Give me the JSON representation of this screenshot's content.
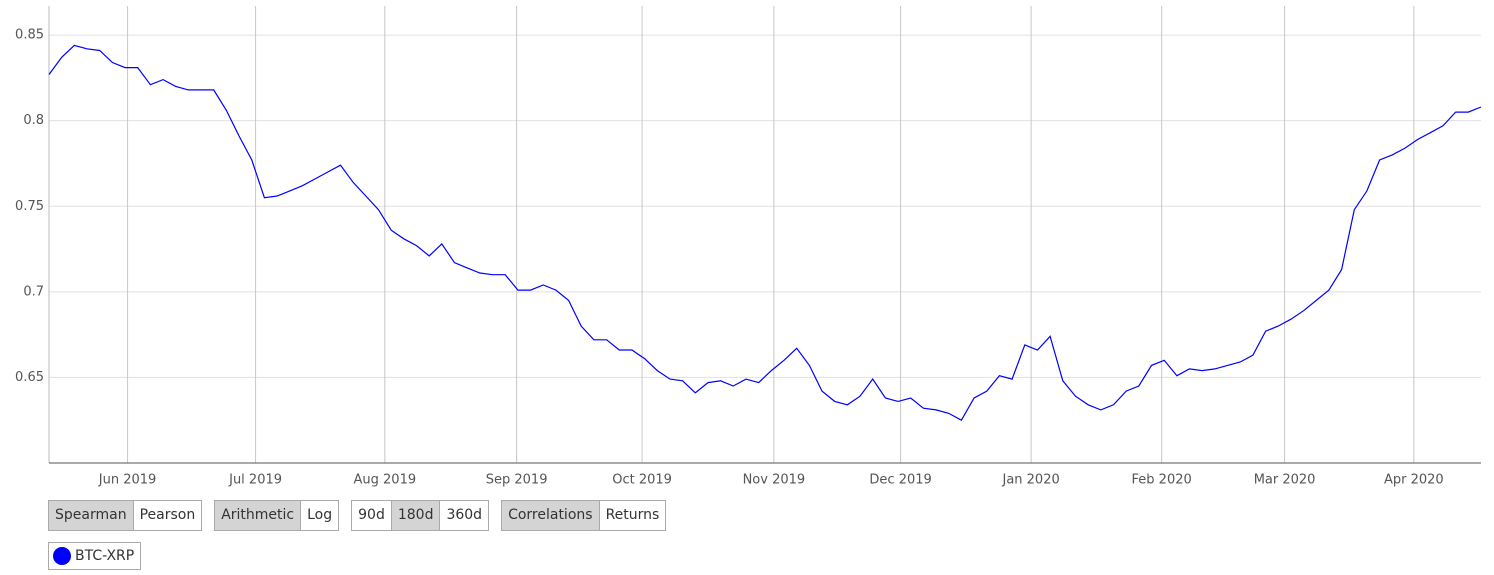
{
  "chart_data": {
    "type": "line",
    "series": [
      {
        "name": "BTC-XRP",
        "color": "#0000ff",
        "values": [
          0.827,
          0.837,
          0.844,
          0.842,
          0.841,
          0.834,
          0.831,
          0.831,
          0.821,
          0.824,
          0.82,
          0.818,
          0.818,
          0.818,
          0.806,
          0.791,
          0.777,
          0.755,
          0.756,
          0.759,
          0.762,
          0.766,
          0.77,
          0.774,
          0.764,
          0.756,
          0.748,
          0.736,
          0.731,
          0.727,
          0.721,
          0.728,
          0.717,
          0.714,
          0.711,
          0.71,
          0.71,
          0.701,
          0.701,
          0.704,
          0.701,
          0.695,
          0.68,
          0.672,
          0.672,
          0.666,
          0.666,
          0.661,
          0.654,
          0.649,
          0.648,
          0.641,
          0.647,
          0.648,
          0.645,
          0.649,
          0.647,
          0.654,
          0.66,
          0.667,
          0.657,
          0.642,
          0.636,
          0.634,
          0.639,
          0.649,
          0.638,
          0.636,
          0.638,
          0.632,
          0.631,
          0.629,
          0.625,
          0.638,
          0.642,
          0.651,
          0.649,
          0.669,
          0.666,
          0.674,
          0.648,
          0.639,
          0.634,
          0.631,
          0.634,
          0.642,
          0.645,
          0.657,
          0.66,
          0.651,
          0.655,
          0.654,
          0.655,
          0.657,
          0.659,
          0.663,
          0.677,
          0.68,
          0.684,
          0.689,
          0.695,
          0.701,
          0.713,
          0.748,
          0.759,
          0.777,
          0.78,
          0.784,
          0.789,
          0.793,
          0.797,
          0.805,
          0.805,
          0.808
        ]
      }
    ],
    "xlim": [
      0,
      113
    ],
    "xticks": [
      {
        "value": 6.2,
        "label": "Jun 2019"
      },
      {
        "value": 16.3,
        "label": "Jul 2019"
      },
      {
        "value": 26.5,
        "label": "Aug 2019"
      },
      {
        "value": 36.9,
        "label": "Sep 2019"
      },
      {
        "value": 46.8,
        "label": "Oct 2019"
      },
      {
        "value": 57.2,
        "label": "Nov 2019"
      },
      {
        "value": 67.2,
        "label": "Dec 2019"
      },
      {
        "value": 77.5,
        "label": "Jan 2020"
      },
      {
        "value": 87.8,
        "label": "Feb 2020"
      },
      {
        "value": 97.5,
        "label": "Mar 2020"
      },
      {
        "value": 107.7,
        "label": "Apr 2020"
      }
    ],
    "ylim": [
      0.6,
      0.867
    ],
    "yticks": [
      0.65,
      0.7,
      0.75,
      0.8,
      0.85
    ],
    "grid": true
  },
  "controls": [
    {
      "buttons": [
        "Spearman",
        "Pearson"
      ],
      "active": 0
    },
    {
      "buttons": [
        "Arithmetic",
        "Log"
      ],
      "active": 0
    },
    {
      "buttons": [
        "90d",
        "180d",
        "360d"
      ],
      "active": 1
    },
    {
      "buttons": [
        "Correlations",
        "Returns"
      ],
      "active": 0
    }
  ]
}
